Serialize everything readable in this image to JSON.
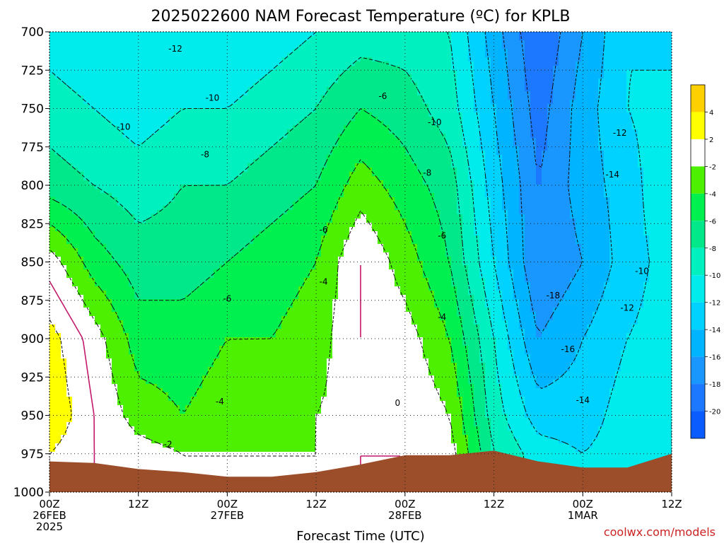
{
  "title": "2025022600 NAM Forecast Temperature (ºC) for KPLB",
  "credit": "coolwx.com/models",
  "colors": {
    "ground": "#9c4e2a",
    "freezing_line": "#c2196b",
    "plot_bg": "#00e6c8"
  },
  "chart_data": {
    "type": "heatmap",
    "title": "2025022600 NAM Forecast Temperature (ºC) for KPLB",
    "xlabel": "Forecast Time (UTC)",
    "ylabel": "",
    "y_axis": {
      "reversed": true,
      "ylim": [
        1000,
        700
      ],
      "ticks": [
        700,
        725,
        750,
        775,
        800,
        825,
        850,
        875,
        900,
        925,
        950,
        975,
        1000
      ]
    },
    "x_axis": {
      "xlim_hours": [
        0,
        84
      ],
      "ticks": [
        {
          "h": 0,
          "lines": [
            "00Z",
            "26FEB",
            "2025"
          ]
        },
        {
          "h": 12,
          "lines": [
            "12Z"
          ]
        },
        {
          "h": 24,
          "lines": [
            "00Z",
            "27FEB"
          ]
        },
        {
          "h": 36,
          "lines": [
            "12Z"
          ]
        },
        {
          "h": 48,
          "lines": [
            "00Z",
            "28FEB"
          ]
        },
        {
          "h": 60,
          "lines": [
            "12Z"
          ]
        },
        {
          "h": 72,
          "lines": [
            "00Z",
            "1MAR"
          ]
        },
        {
          "h": 84,
          "lines": [
            "12Z"
          ]
        }
      ]
    },
    "grid": true,
    "colorbar": {
      "placement": "right",
      "bins": [
        {
          "lo": -22,
          "hi": -20,
          "color": "#0a5cff"
        },
        {
          "lo": -20,
          "hi": -18,
          "color": "#1c78ff"
        },
        {
          "lo": -18,
          "hi": -16,
          "color": "#1a96ff"
        },
        {
          "lo": -16,
          "hi": -14,
          "color": "#00b4ff"
        },
        {
          "lo": -14,
          "hi": -12,
          "color": "#00d2ff"
        },
        {
          "lo": -12,
          "hi": -10,
          "color": "#00ecec"
        },
        {
          "lo": -10,
          "hi": -8,
          "color": "#00f0c0"
        },
        {
          "lo": -8,
          "hi": -6,
          "color": "#00e88a"
        },
        {
          "lo": -6,
          "hi": -4,
          "color": "#00f050"
        },
        {
          "lo": -4,
          "hi": -2,
          "color": "#4cf000"
        },
        {
          "lo": -2,
          "hi": 2,
          "color": "#ffffff"
        },
        {
          "lo": 2,
          "hi": 4,
          "color": "#ffff00"
        },
        {
          "lo": 4,
          "hi": 6,
          "color": "#ffd000"
        }
      ],
      "tick_labels": [
        "-20",
        "-18",
        "-16",
        "-14",
        "-12",
        "-10",
        "-8",
        "-6",
        "-4",
        "-2",
        "2",
        "4"
      ]
    },
    "contour_labels": [
      {
        "text": "-12",
        "h": 17,
        "p": 711
      },
      {
        "text": "-10",
        "h": 22,
        "p": 743
      },
      {
        "text": "-10",
        "h": 10,
        "p": 762
      },
      {
        "text": "-8",
        "h": 21,
        "p": 780
      },
      {
        "text": "-6",
        "h": 45,
        "p": 742
      },
      {
        "text": "-10",
        "h": 52,
        "p": 759
      },
      {
        "text": "-8",
        "h": 51,
        "p": 792
      },
      {
        "text": "-6",
        "h": 37,
        "p": 829
      },
      {
        "text": "-6",
        "h": 53,
        "p": 833
      },
      {
        "text": "-6",
        "h": 24,
        "p": 874
      },
      {
        "text": "-4",
        "h": 37,
        "p": 863
      },
      {
        "text": "-4",
        "h": 53,
        "p": 886
      },
      {
        "text": "-4",
        "h": 23,
        "p": 941
      },
      {
        "text": "-2",
        "h": 16,
        "p": 969
      },
      {
        "text": "0",
        "h": 47,
        "p": 942
      },
      {
        "text": "-12",
        "h": 77,
        "p": 766
      },
      {
        "text": "-14",
        "h": 76,
        "p": 793
      },
      {
        "text": "-10",
        "h": 80,
        "p": 856
      },
      {
        "text": "-12",
        "h": 78,
        "p": 880
      },
      {
        "text": "-18",
        "h": 68,
        "p": 872
      },
      {
        "text": "-16",
        "h": 70,
        "p": 907
      },
      {
        "text": "-14",
        "h": 72,
        "p": 940
      }
    ],
    "temperature_field": {
      "units": "°C",
      "x_hours": [
        0,
        6,
        12,
        18,
        24,
        30,
        36,
        42,
        48,
        54,
        60,
        66,
        72,
        78,
        84
      ],
      "levels_mb": [
        700,
        750,
        800,
        850,
        900,
        950,
        975
      ],
      "values": [
        [
          -11,
          -12,
          -12,
          -12,
          -12,
          -11,
          -10,
          -9,
          -9,
          -10,
          -15,
          -20,
          -16,
          -12,
          -13
        ],
        [
          -9,
          -10,
          -11,
          -10,
          -10,
          -9,
          -8,
          -6,
          -7,
          -9,
          -14,
          -19,
          -15,
          -12,
          -11
        ],
        [
          -7,
          -8,
          -9,
          -8,
          -8,
          -7,
          -6,
          -3,
          -5,
          -7,
          -13,
          -18,
          -15,
          -13,
          -10
        ],
        [
          -1,
          -5,
          -7,
          -7,
          -6,
          -5,
          -4,
          0,
          -3,
          -6,
          -12,
          -18,
          -16,
          -13,
          -11
        ],
        [
          3,
          -1,
          -5,
          -5,
          -4,
          -4,
          -3,
          0,
          -1,
          -4,
          -10,
          -16,
          -14,
          -12,
          -11
        ],
        [
          4,
          0,
          -3,
          -4,
          -3,
          -3,
          -2,
          -1,
          0,
          -2,
          -9,
          -13,
          -13,
          -11,
          -10
        ],
        [
          2,
          0,
          -1,
          -2,
          -2,
          -2,
          -2,
          0,
          0,
          -1,
          -8,
          -11,
          -12,
          -11,
          -10
        ]
      ]
    },
    "surface_pressure_mb": [
      {
        "h": 0,
        "p": 980
      },
      {
        "h": 6,
        "p": 981
      },
      {
        "h": 12,
        "p": 985
      },
      {
        "h": 18,
        "p": 987
      },
      {
        "h": 24,
        "p": 990
      },
      {
        "h": 30,
        "p": 990
      },
      {
        "h": 36,
        "p": 987
      },
      {
        "h": 42,
        "p": 982
      },
      {
        "h": 48,
        "p": 976
      },
      {
        "h": 54,
        "p": 976
      },
      {
        "h": 60,
        "p": 973
      },
      {
        "h": 66,
        "p": 980
      },
      {
        "h": 72,
        "p": 984
      },
      {
        "h": 78,
        "p": 984
      },
      {
        "h": 84,
        "p": 975
      }
    ]
  }
}
